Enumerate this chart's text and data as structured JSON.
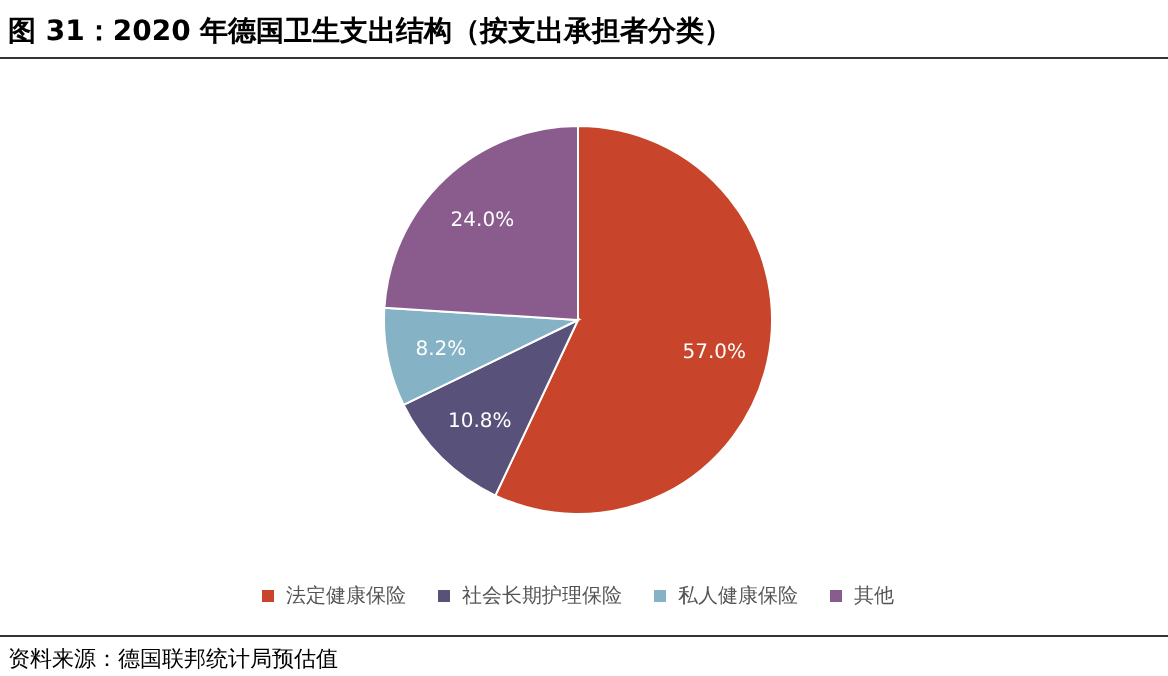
{
  "chart_data": {
    "type": "pie",
    "title": "图 31：2020 年德国卫生支出结构（按支出承担者分类）",
    "categories": [
      "法定健康保险",
      "社会长期护理保险",
      "私人健康保险",
      "其他"
    ],
    "values": [
      57.0,
      10.8,
      8.2,
      24.0
    ],
    "colors": [
      "#c8442a",
      "#58517a",
      "#86b2c6",
      "#8a5c8e"
    ],
    "value_labels": [
      "57.0%",
      "10.8%",
      "8.2%",
      "24.0%"
    ],
    "legend": "bottom",
    "annotations": [
      "资料来源：德国联邦统计局预估值"
    ]
  }
}
